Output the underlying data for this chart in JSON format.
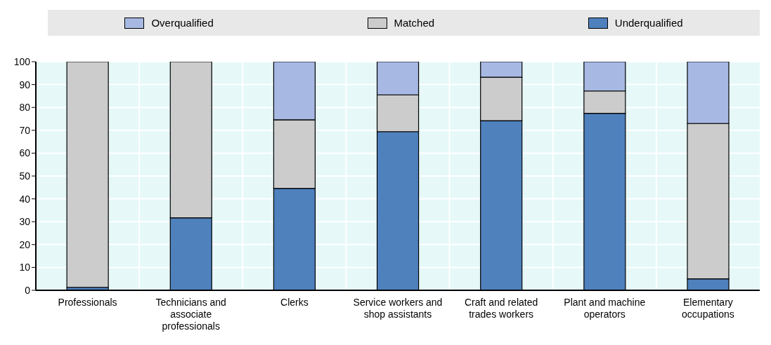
{
  "chart_data": {
    "type": "bar",
    "stacked": true,
    "categories": [
      "Professionals",
      "Technicians and associate professionals",
      "Clerks",
      "Service workers and shop assistants",
      "Craft and related trades workers",
      "Plant and machine operators",
      "Elementary occupations"
    ],
    "series": [
      {
        "name": "Underqualified",
        "color": "#4f81bd",
        "values": [
          1.3,
          31.7,
          44.6,
          69.4,
          74.2,
          77.4,
          5.0
        ]
      },
      {
        "name": "Matched",
        "color": "#cccccc",
        "values": [
          98.7,
          68.3,
          30.0,
          16.1,
          19.0,
          9.8,
          68.0
        ]
      },
      {
        "name": "Overqualified",
        "color": "#a7b9e3",
        "values": [
          0,
          0,
          25.4,
          14.5,
          6.8,
          12.8,
          27.0
        ]
      }
    ],
    "ylim": [
      0,
      100
    ],
    "yticks": [
      0,
      10,
      20,
      30,
      40,
      50,
      60,
      70,
      80,
      90,
      100
    ],
    "grid": true,
    "legend": "top"
  }
}
